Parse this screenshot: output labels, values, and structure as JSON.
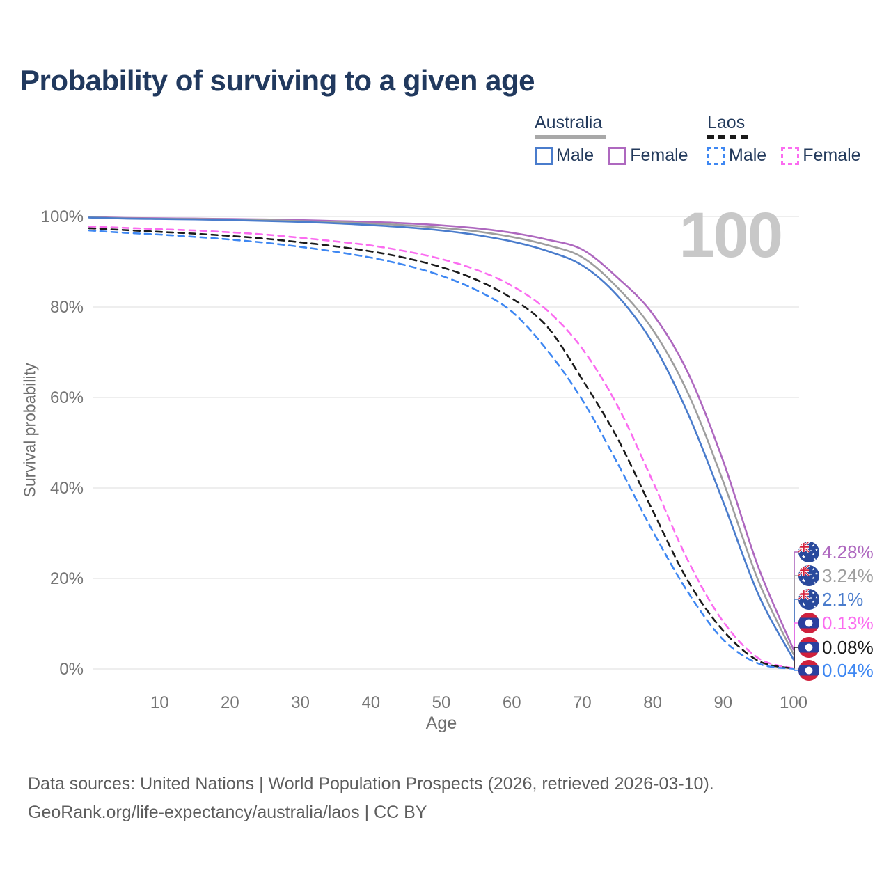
{
  "title": "Probability of surviving to a given age",
  "age_indicator": "100",
  "legend": {
    "groups": [
      {
        "id": "australia",
        "label": "Australia",
        "underline_style": "solid",
        "underline_color": "#a8a8a8",
        "items": [
          {
            "label": "Male",
            "color": "#4a7ccc",
            "dashed": false
          },
          {
            "label": "Female",
            "color": "#ae68bf",
            "dashed": false
          }
        ]
      },
      {
        "id": "laos",
        "label": "Laos",
        "underline_style": "dashed",
        "underline_color": "#1a1a1a",
        "items": [
          {
            "label": "Male",
            "color": "#3e87f2",
            "dashed": true
          },
          {
            "label": "Female",
            "color": "#fb6cf0",
            "dashed": true
          }
        ]
      }
    ]
  },
  "chart_data": {
    "type": "line",
    "title": "Probability of surviving to a given age",
    "xlabel": "Age",
    "ylabel": "Survival probability",
    "xlim": [
      0,
      100
    ],
    "ylim": [
      0,
      100
    ],
    "grid": "horizontal-only",
    "x_tick_values": [
      10,
      20,
      30,
      40,
      50,
      60,
      70,
      80,
      90,
      100
    ],
    "x_tick_labels": [
      "10",
      "20",
      "30",
      "40",
      "50",
      "60",
      "70",
      "80",
      "90",
      "100"
    ],
    "y_tick_values": [
      0,
      20,
      40,
      60,
      80,
      100
    ],
    "y_tick_labels": [
      "0%",
      "20%",
      "40%",
      "60%",
      "80%",
      "100%"
    ],
    "ages": [
      0,
      5,
      10,
      15,
      20,
      25,
      30,
      35,
      40,
      45,
      50,
      55,
      60,
      65,
      70,
      75,
      80,
      85,
      90,
      95,
      100
    ],
    "series": [
      {
        "id": "australia-female",
        "name": "Australia Female",
        "country": "Australia",
        "sex": "Female",
        "color": "#ae68bf",
        "dashed": false,
        "flag": "australia-flag-icon",
        "end_label": "4.28%",
        "values": [
          99.9,
          99.7,
          99.6,
          99.55,
          99.45,
          99.35,
          99.2,
          99.0,
          98.8,
          98.5,
          98.05,
          97.4,
          96.4,
          94.9,
          92.7,
          86.5,
          78.5,
          65.5,
          46.0,
          22.5,
          4.28
        ]
      },
      {
        "id": "australia-all",
        "name": "Australia (both sexes)",
        "country": "Australia",
        "sex": "All",
        "color": "#9e9e9e",
        "dashed": false,
        "flag": "australia-flag-icon",
        "end_label": "3.24%",
        "values": [
          99.85,
          99.6,
          99.5,
          99.45,
          99.35,
          99.2,
          99.0,
          98.75,
          98.45,
          98.05,
          97.5,
          96.7,
          95.5,
          93.7,
          91.0,
          84.3,
          75.0,
          61.0,
          41.5,
          19.5,
          3.24
        ]
      },
      {
        "id": "australia-male",
        "name": "Australia Male",
        "country": "Australia",
        "sex": "Male",
        "color": "#4a7ccc",
        "dashed": false,
        "flag": "australia-flag-icon",
        "end_label": "2.1%",
        "values": [
          99.75,
          99.55,
          99.45,
          99.35,
          99.2,
          99.0,
          98.8,
          98.5,
          98.1,
          97.6,
          96.9,
          95.9,
          94.5,
          92.4,
          89.2,
          82.5,
          72.0,
          56.5,
          37.0,
          16.5,
          2.1
        ]
      },
      {
        "id": "laos-female",
        "name": "Laos Female",
        "country": "Laos",
        "sex": "Female",
        "color": "#fb6cf0",
        "dashed": true,
        "flag": "laos-flag-icon",
        "end_label": "0.13%",
        "values": [
          97.8,
          97.5,
          97.2,
          96.9,
          96.5,
          96.0,
          95.3,
          94.5,
          93.6,
          92.3,
          90.6,
          88.2,
          84.7,
          79.3,
          70.8,
          58.2,
          41.5,
          24.0,
          10.5,
          2.4,
          0.13
        ]
      },
      {
        "id": "laos-all",
        "name": "Laos (both sexes)",
        "country": "Laos",
        "sex": "All",
        "color": "#1a1a1a",
        "dashed": true,
        "flag": "laos-flag-icon",
        "end_label": "0.08%",
        "values": [
          97.4,
          97.0,
          96.6,
          96.2,
          95.7,
          95.1,
          94.3,
          93.4,
          92.3,
          90.8,
          88.8,
          86.0,
          81.9,
          75.7,
          64.0,
          51.0,
          35.0,
          19.5,
          8.5,
          1.8,
          0.08
        ]
      },
      {
        "id": "laos-male",
        "name": "Laos Male",
        "country": "Laos",
        "sex": "Male",
        "color": "#3e87f2",
        "dashed": true,
        "flag": "laos-flag-icon",
        "end_label": "0.04%",
        "values": [
          96.9,
          96.4,
          96.0,
          95.5,
          94.9,
          94.2,
          93.3,
          92.2,
          90.9,
          89.2,
          86.9,
          83.7,
          79.0,
          70.5,
          59.5,
          45.5,
          30.5,
          17.0,
          6.5,
          1.2,
          0.04
        ]
      }
    ]
  },
  "footer": {
    "line1": "Data sources: United Nations | World Population Prospects (2026, retrieved 2026-03-10).",
    "line2": "GeoRank.org/life-expectancy/australia/laos | CC BY"
  }
}
